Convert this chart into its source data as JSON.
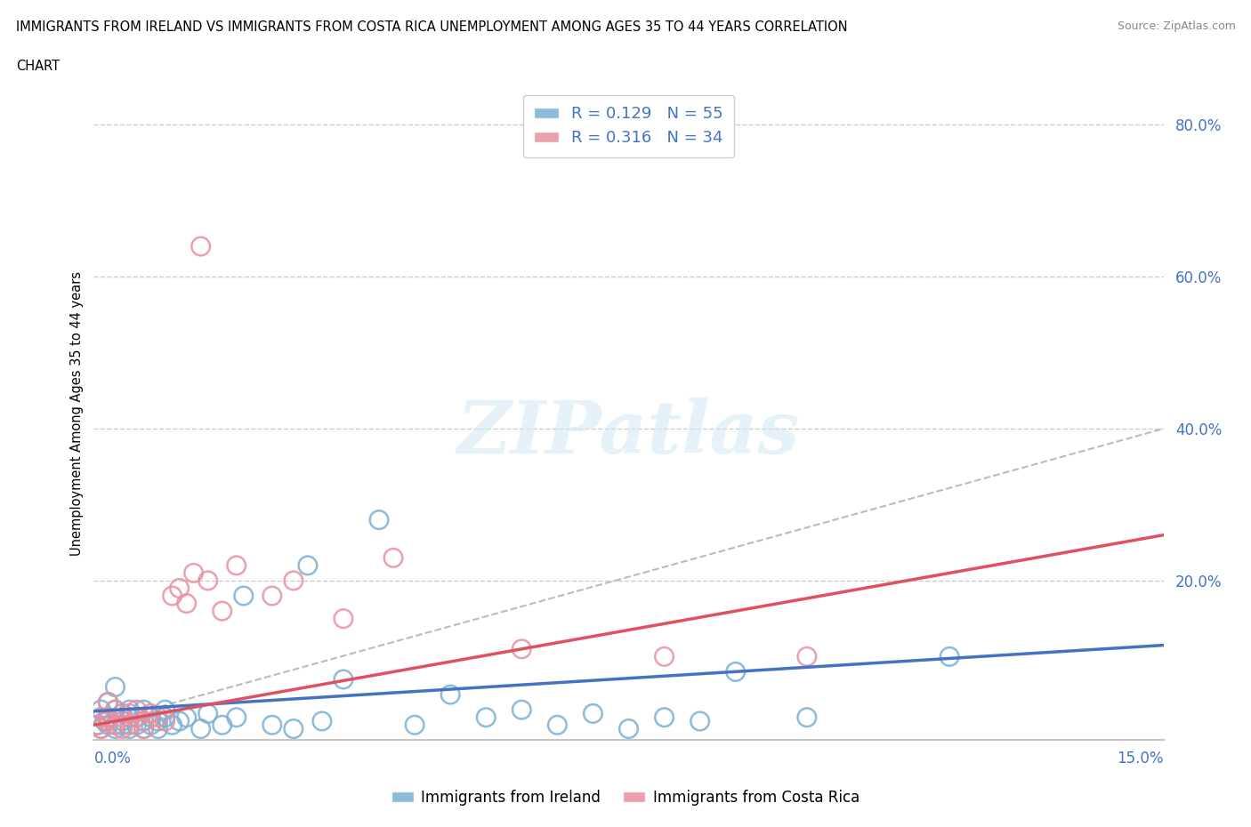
{
  "title_line1": "IMMIGRANTS FROM IRELAND VS IMMIGRANTS FROM COSTA RICA UNEMPLOYMENT AMONG AGES 35 TO 44 YEARS CORRELATION",
  "title_line2": "CHART",
  "source": "Source: ZipAtlas.com",
  "ylabel": "Unemployment Among Ages 35 to 44 years",
  "ireland_color": "#7BAFD4",
  "costa_rica_color": "#E8919F",
  "ireland_R": 0.129,
  "ireland_N": 55,
  "costa_rica_R": 0.316,
  "costa_rica_N": 34,
  "xmin": 0.0,
  "xmax": 0.15,
  "ymin": -0.01,
  "ymax": 0.85,
  "legend_R_color": "#4472C4",
  "legend_N_color": "#E8485A",
  "ytick_color": "#4472C4",
  "xtick_color": "#4472C4",
  "watermark_text": "ZIPatlas",
  "watermark_color": "#D5EAF5",
  "grid_color": "#CCCCCC",
  "ireland_x": [
    0.0005,
    0.001,
    0.001,
    0.001,
    0.0015,
    0.002,
    0.002,
    0.002,
    0.003,
    0.003,
    0.003,
    0.003,
    0.004,
    0.004,
    0.004,
    0.005,
    0.005,
    0.005,
    0.006,
    0.006,
    0.007,
    0.007,
    0.007,
    0.008,
    0.008,
    0.009,
    0.009,
    0.01,
    0.01,
    0.011,
    0.012,
    0.013,
    0.015,
    0.016,
    0.018,
    0.02,
    0.021,
    0.025,
    0.028,
    0.03,
    0.032,
    0.035,
    0.04,
    0.045,
    0.05,
    0.055,
    0.06,
    0.065,
    0.07,
    0.075,
    0.08,
    0.085,
    0.09,
    0.1,
    0.12
  ],
  "ireland_y": [
    0.01,
    0.02,
    0.03,
    0.005,
    0.015,
    0.01,
    0.04,
    0.02,
    0.01,
    0.03,
    0.005,
    0.06,
    0.015,
    0.025,
    0.01,
    0.02,
    0.005,
    0.03,
    0.01,
    0.02,
    0.015,
    0.03,
    0.005,
    0.02,
    0.01,
    0.015,
    0.005,
    0.02,
    0.03,
    0.01,
    0.015,
    0.02,
    0.005,
    0.025,
    0.01,
    0.02,
    0.18,
    0.01,
    0.005,
    0.22,
    0.015,
    0.07,
    0.28,
    0.01,
    0.05,
    0.02,
    0.03,
    0.01,
    0.025,
    0.005,
    0.02,
    0.015,
    0.08,
    0.02,
    0.1
  ],
  "costa_rica_x": [
    0.0005,
    0.001,
    0.001,
    0.002,
    0.002,
    0.002,
    0.003,
    0.003,
    0.004,
    0.004,
    0.005,
    0.005,
    0.006,
    0.006,
    0.007,
    0.007,
    0.008,
    0.009,
    0.01,
    0.011,
    0.012,
    0.013,
    0.014,
    0.015,
    0.016,
    0.018,
    0.02,
    0.025,
    0.028,
    0.035,
    0.042,
    0.06,
    0.08,
    0.1
  ],
  "costa_rica_y": [
    0.01,
    0.005,
    0.02,
    0.015,
    0.04,
    0.02,
    0.01,
    0.03,
    0.02,
    0.005,
    0.025,
    0.01,
    0.02,
    0.03,
    0.015,
    0.005,
    0.025,
    0.02,
    0.015,
    0.18,
    0.19,
    0.17,
    0.21,
    0.64,
    0.2,
    0.16,
    0.22,
    0.18,
    0.2,
    0.15,
    0.23,
    0.11,
    0.1,
    0.1
  ],
  "ireland_trendline_x": [
    0.0,
    0.15
  ],
  "ireland_trendline_y": [
    0.028,
    0.115
  ],
  "costa_rica_trendline_x": [
    0.0,
    0.15
  ],
  "costa_rica_trendline_y": [
    0.01,
    0.26
  ]
}
